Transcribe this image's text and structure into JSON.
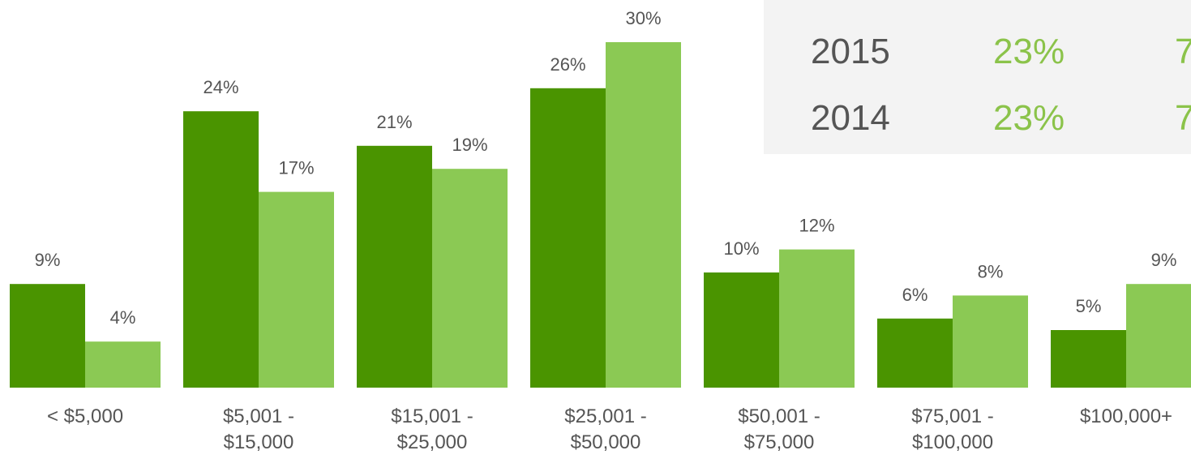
{
  "colors": {
    "dark_green": "#4a9400",
    "light_green": "#8bc954",
    "label_text": "#555555",
    "panel_background": "#f3f3f3"
  },
  "legend_panel": {
    "rows": [
      {
        "year": "2015",
        "value_1": "23%",
        "value_2": "7"
      },
      {
        "year": "2014",
        "value_1": "23%",
        "value_2": "7"
      }
    ]
  },
  "chart_data": {
    "type": "bar",
    "categories": [
      [
        "< $5,000"
      ],
      [
        "$5,001 -",
        "$15,000"
      ],
      [
        "$15,001 -",
        "$25,000"
      ],
      [
        "$25,001 -",
        "$50,000"
      ],
      [
        "$50,001 -",
        "$75,000"
      ],
      [
        "$75,001 -",
        "$100,000"
      ],
      [
        "$100,000+"
      ]
    ],
    "series": [
      {
        "values": [
          9,
          24,
          21,
          26,
          10,
          6,
          5
        ],
        "labels": [
          "9%",
          "24%",
          "21%",
          "26%",
          "10%",
          "6%",
          "5%"
        ],
        "color": "#4a9400"
      },
      {
        "values": [
          4,
          17,
          19,
          30,
          12,
          8,
          9
        ],
        "labels": [
          "4%",
          "17%",
          "19%",
          "30%",
          "12%",
          "8%",
          "9%"
        ],
        "color": "#8bc954"
      }
    ],
    "unit": "%",
    "ylim": [
      0,
      30
    ],
    "grid": false
  }
}
